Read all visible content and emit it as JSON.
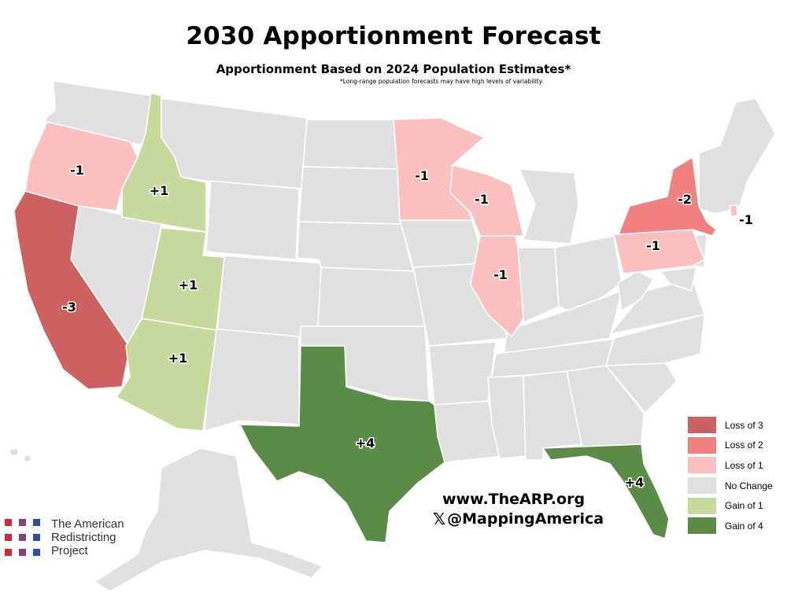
{
  "title": "2030 Apportionment Forecast",
  "subtitle": "Apportionment Based on 2024 Population Estimates*",
  "footnote": "*Long-range population forecasts may have high levels of variability.",
  "colors": {
    "loss3": "#cd6161",
    "loss2": "#f18181",
    "loss1": "#fbbfc0",
    "none": "#e0e0e0",
    "gain1": "#c8d99d",
    "gain4": "#5b8c45"
  },
  "states": [
    {
      "name": "California",
      "change": "-3",
      "category": "loss3"
    },
    {
      "name": "New York",
      "change": "-2",
      "category": "loss2"
    },
    {
      "name": "Oregon",
      "change": "-1",
      "category": "loss1"
    },
    {
      "name": "Minnesota",
      "change": "-1",
      "category": "loss1"
    },
    {
      "name": "Wisconsin",
      "change": "-1",
      "category": "loss1"
    },
    {
      "name": "Illinois",
      "change": "-1",
      "category": "loss1"
    },
    {
      "name": "Pennsylvania",
      "change": "-1",
      "category": "loss1"
    },
    {
      "name": "Rhode Island",
      "change": "-1",
      "category": "loss1"
    },
    {
      "name": "Idaho",
      "change": "+1",
      "category": "gain1"
    },
    {
      "name": "Utah",
      "change": "+1",
      "category": "gain1"
    },
    {
      "name": "Arizona",
      "change": "+1",
      "category": "gain1"
    },
    {
      "name": "Texas",
      "change": "+4",
      "category": "gain4"
    },
    {
      "name": "Florida",
      "change": "+4",
      "category": "gain4"
    }
  ],
  "legend": [
    {
      "label": "Loss of 3",
      "color": "#cd6161"
    },
    {
      "label": "Loss of 2",
      "color": "#f18181"
    },
    {
      "label": "Loss of 1",
      "color": "#fbbfc0"
    },
    {
      "label": "No Change",
      "color": "#e0e0e0"
    },
    {
      "label": "Gain of 1",
      "color": "#c8d99d"
    },
    {
      "label": "Gain of 4",
      "color": "#5b8c45"
    }
  ],
  "website": "www.TheARP.org",
  "social_icon": "x-logo-icon",
  "social_handle": "@MappingAmerica",
  "logo": {
    "line1": "The American",
    "line2": "Redistricting",
    "line3": "Project",
    "square_colors": [
      "#d9253a",
      "#8b3e78",
      "#2e4da0"
    ]
  }
}
